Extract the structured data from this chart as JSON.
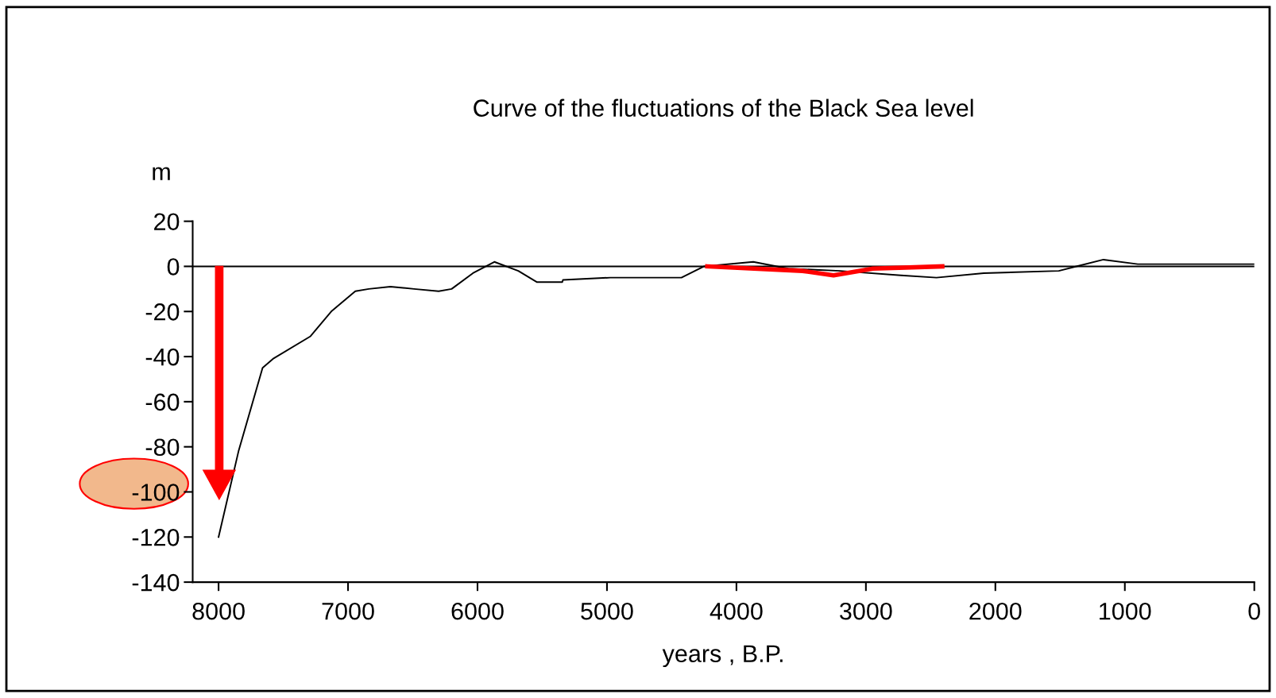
{
  "chart_data": {
    "type": "line",
    "title": "Curve of the fluctuations of the Black Sea level",
    "xlabel": "years , B.P.",
    "ylabel": "m",
    "xlim": [
      8200,
      0
    ],
    "xticks": [
      8000,
      7000,
      6000,
      5000,
      4000,
      3000,
      2000,
      1000,
      0
    ],
    "ylim": [
      -140,
      20
    ],
    "yticks": [
      20,
      0,
      -20,
      -40,
      -60,
      -80,
      -100,
      -120,
      -140
    ],
    "ref_lines": [
      {
        "axis": "y",
        "value": 0,
        "color": "#000000"
      }
    ],
    "grid": false,
    "legend": false,
    "marker": "none",
    "series": [
      {
        "color": "#000000",
        "x": [
          8000,
          7846,
          7660,
          7580,
          7290,
          7130,
          6944,
          6840,
          6673,
          6490,
          6300,
          6200,
          6035,
          5870,
          5685,
          5540,
          5345,
          5340,
          4975,
          4425,
          4250,
          3870,
          3600,
          3200,
          2730,
          2455,
          2090,
          1510,
          1375,
          1165,
          900,
          500,
          0
        ],
        "values": [
          -120,
          -82,
          -45,
          -41,
          -31,
          -20,
          -11,
          -10,
          -9,
          -10,
          -11,
          -10,
          -3,
          2,
          -2,
          -7,
          -7,
          -6,
          -5,
          -5,
          0,
          2,
          -1,
          -2,
          -4,
          -5,
          -3,
          -2,
          0,
          3,
          1,
          1,
          1
        ]
      },
      {
        "color": "#ff0000",
        "x": [
          4225,
          3490,
          3250,
          2945,
          2410
        ],
        "values": [
          0,
          -2,
          -4,
          -1,
          0
        ]
      }
    ]
  }
}
